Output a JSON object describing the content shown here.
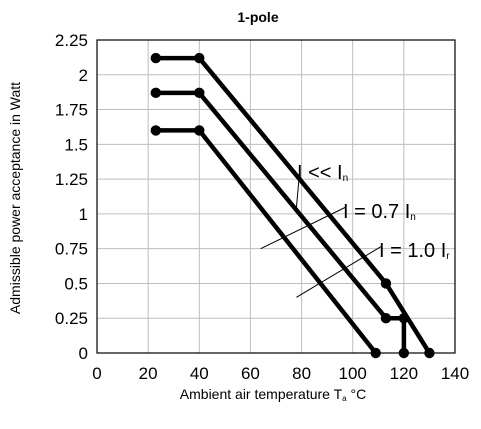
{
  "chart_data": {
    "type": "line",
    "title": "1-pole",
    "xlabel": "Ambient air temperature T",
    "xlabel_sub": "a",
    "xlabel_unit": " °C",
    "ylabel": "Admissible power acceptance in Watt",
    "xlim": [
      0,
      140
    ],
    "ylim": [
      0,
      2.25
    ],
    "x_ticks": [
      0,
      20,
      40,
      60,
      80,
      100,
      120,
      140
    ],
    "y_ticks": [
      0,
      0.25,
      0.5,
      0.75,
      1,
      1.25,
      1.5,
      1.75,
      2,
      2.25
    ],
    "x_tick_labels": [
      "0",
      "20",
      "40",
      "60",
      "80",
      "100",
      "120",
      "140"
    ],
    "y_tick_labels": [
      "0",
      "0.25",
      "0.5",
      "0.75",
      "1",
      "1.25",
      "1.5",
      "1.75",
      "2",
      "2.25"
    ],
    "grid": true,
    "series": [
      {
        "name": "I << In",
        "label_main": "I << I",
        "label_sub": "n",
        "x": [
          23,
          40,
          113,
          130
        ],
        "y": [
          2.12,
          2.12,
          0.5,
          0
        ]
      },
      {
        "name": "I = 0.7 In",
        "label_main": "I = 0.7 I",
        "label_sub": "n",
        "x": [
          23,
          40,
          113,
          120,
          120
        ],
        "y": [
          1.87,
          1.87,
          0.25,
          0.25,
          0
        ]
      },
      {
        "name": "I = 1.0 Ir",
        "label_main": "I = 1.0 I",
        "label_sub": "r",
        "x": [
          23,
          40,
          109
        ],
        "y": [
          1.6,
          1.6,
          0
        ]
      }
    ],
    "marker_points": [
      {
        "x": 23,
        "y": 2.12
      },
      {
        "x": 40,
        "y": 2.12
      },
      {
        "x": 23,
        "y": 1.87
      },
      {
        "x": 40,
        "y": 1.87
      },
      {
        "x": 23,
        "y": 1.6
      },
      {
        "x": 40,
        "y": 1.6
      },
      {
        "x": 113,
        "y": 0.5
      },
      {
        "x": 113,
        "y": 0.25
      },
      {
        "x": 120,
        "y": 0.25
      },
      {
        "x": 109,
        "y": 0
      },
      {
        "x": 120,
        "y": 0
      },
      {
        "x": 130,
        "y": 0
      }
    ],
    "annotations": [
      {
        "series": 0,
        "anchor": {
          "x": 78,
          "y": 1.05
        }
      },
      {
        "series": 1,
        "anchor": {
          "x": 64,
          "y": 0.75
        }
      },
      {
        "series": 2,
        "anchor": {
          "x": 78,
          "y": 0.4
        }
      }
    ]
  }
}
